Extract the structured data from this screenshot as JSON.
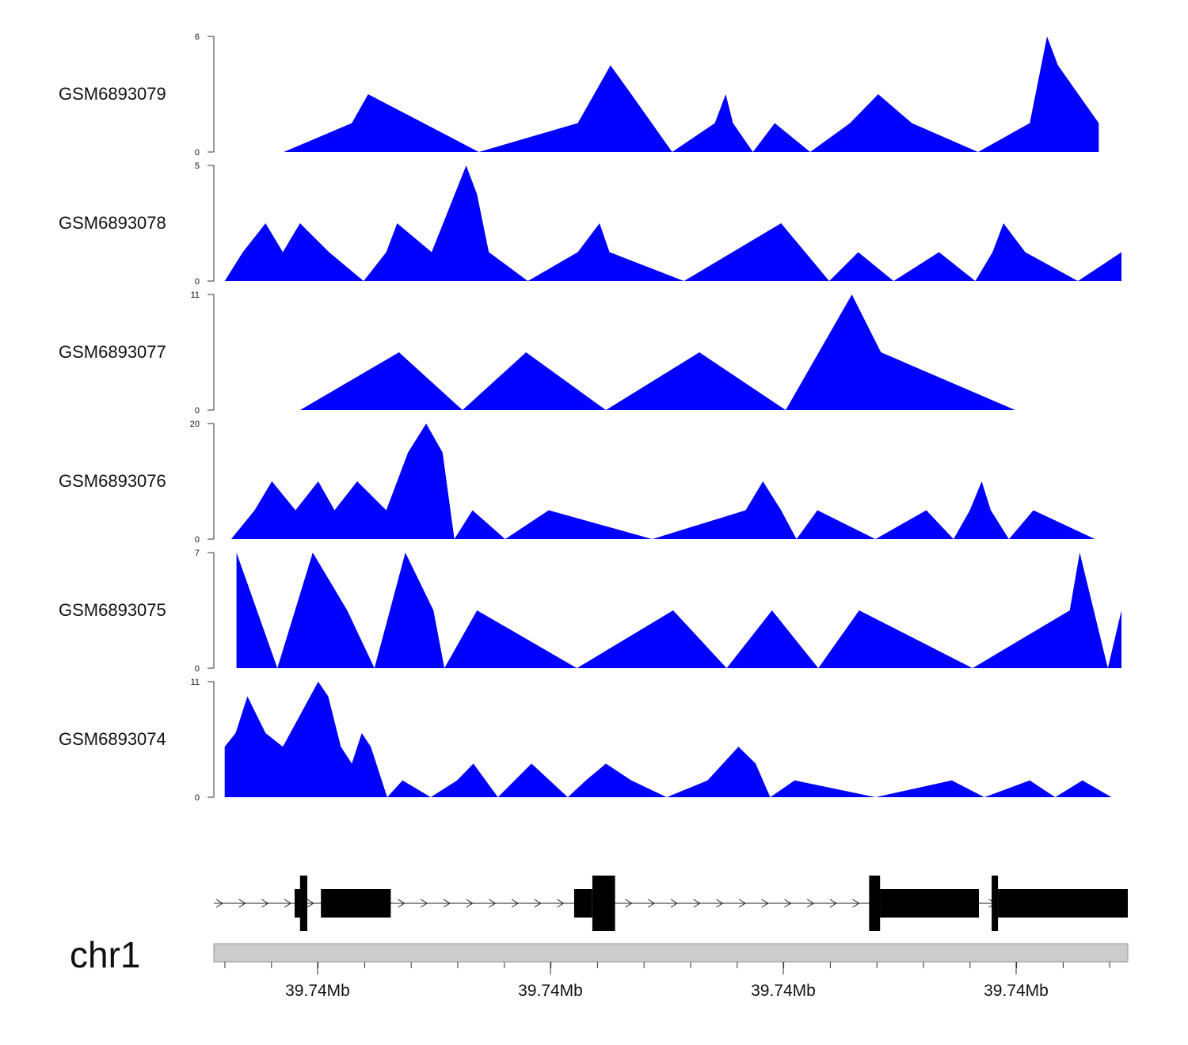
{
  "chart_data": {
    "type": "area",
    "genome_axis": {
      "chromosome": "chr1",
      "tick_labels": [
        "39.74Mb",
        "39.74Mb",
        "39.74Mb",
        "39.74Mb"
      ],
      "x_range": [
        0,
        100
      ]
    },
    "tracks": [
      {
        "name": "GSM6893079",
        "ylim": [
          0,
          6
        ],
        "tick_labels": [
          "0",
          "6"
        ],
        "points": [
          [
            7,
            0
          ],
          [
            14.5,
            1.5
          ],
          [
            16.3,
            3
          ],
          [
            28.5,
            0
          ],
          [
            39.4,
            1.5
          ],
          [
            41.2,
            3
          ],
          [
            43,
            4.5
          ],
          [
            45.3,
            3
          ],
          [
            49.8,
            0
          ],
          [
            54.5,
            1.5
          ],
          [
            55.7,
            3
          ],
          [
            56.5,
            1.5
          ],
          [
            58.7,
            0
          ],
          [
            61.1,
            1.5
          ],
          [
            65,
            0
          ],
          [
            69.4,
            1.5
          ],
          [
            72.5,
            3
          ],
          [
            76.2,
            1.5
          ],
          [
            83.5,
            0
          ],
          [
            89.2,
            1.5
          ],
          [
            91.1,
            6
          ],
          [
            92.3,
            4.5
          ],
          [
            96.8,
            1.5
          ],
          [
            96.8,
            0
          ]
        ]
      },
      {
        "name": "GSM6893078",
        "ylim": [
          0,
          5
        ],
        "tick_labels": [
          "0",
          "5"
        ],
        "points": [
          [
            0.5,
            0
          ],
          [
            2.5,
            1.25
          ],
          [
            5,
            2.5
          ],
          [
            6.9,
            1.25
          ],
          [
            8.8,
            2.5
          ],
          [
            12,
            1.25
          ],
          [
            15.8,
            0
          ],
          [
            18.3,
            1.25
          ],
          [
            19.5,
            2.5
          ],
          [
            23.3,
            1.25
          ],
          [
            27.1,
            5
          ],
          [
            28.3,
            3.75
          ],
          [
            29.6,
            1.25
          ],
          [
            33.9,
            0
          ],
          [
            39.4,
            1.25
          ],
          [
            41.8,
            2.5
          ],
          [
            42.9,
            1.25
          ],
          [
            51.1,
            0
          ],
          [
            61.8,
            2.5
          ],
          [
            67.1,
            0
          ],
          [
            70.3,
            1.25
          ],
          [
            74.2,
            0
          ],
          [
            79.2,
            1.25
          ],
          [
            83.2,
            0
          ],
          [
            85.1,
            1.25
          ],
          [
            86.3,
            2.5
          ],
          [
            88.7,
            1.25
          ],
          [
            94.5,
            0
          ],
          [
            99.3,
            1.25
          ],
          [
            99.3,
            0
          ]
        ]
      },
      {
        "name": "GSM6893077",
        "ylim": [
          0,
          11
        ],
        "tick_labels": [
          "0",
          "11"
        ],
        "points": [
          [
            8.8,
            0
          ],
          [
            19.7,
            5.5
          ],
          [
            26.7,
            0
          ],
          [
            33.7,
            5.5
          ],
          [
            42.5,
            0
          ],
          [
            52.8,
            5.5
          ],
          [
            62.3,
            0
          ],
          [
            69.6,
            11
          ],
          [
            72.8,
            5.5
          ],
          [
            87.6,
            0
          ]
        ]
      },
      {
        "name": "GSM6893076",
        "ylim": [
          0,
          20
        ],
        "tick_labels": [
          "0",
          "20"
        ],
        "points": [
          [
            1.2,
            0
          ],
          [
            3.8,
            5
          ],
          [
            5.7,
            10
          ],
          [
            8.3,
            5
          ],
          [
            10.8,
            10
          ],
          [
            12.6,
            5
          ],
          [
            15.1,
            10
          ],
          [
            18.3,
            5
          ],
          [
            20.7,
            15
          ],
          [
            22.7,
            20
          ],
          [
            24.5,
            15
          ],
          [
            25.8,
            0
          ],
          [
            27.8,
            5
          ],
          [
            31.4,
            0
          ],
          [
            36.2,
            5
          ],
          [
            47.6,
            0
          ],
          [
            57.9,
            5
          ],
          [
            59.8,
            10
          ],
          [
            61.8,
            5
          ],
          [
            63.5,
            0
          ],
          [
            65.8,
            5
          ],
          [
            72.2,
            0
          ],
          [
            77.8,
            5
          ],
          [
            80.8,
            0
          ],
          [
            82.6,
            5
          ],
          [
            83.9,
            10
          ],
          [
            84.9,
            5
          ],
          [
            86.9,
            0
          ],
          [
            89.6,
            5
          ],
          [
            96.4,
            0
          ]
        ]
      },
      {
        "name": "GSM6893075",
        "ylim": [
          0,
          7
        ],
        "tick_labels": [
          "0",
          "7"
        ],
        "points": [
          [
            1.8,
            0
          ],
          [
            1.8,
            7
          ],
          [
            6.3,
            0
          ],
          [
            10.2,
            7
          ],
          [
            14,
            3.5
          ],
          [
            17,
            0
          ],
          [
            20.4,
            7
          ],
          [
            23.5,
            3.5
          ],
          [
            24.7,
            0
          ],
          [
            28.3,
            3.5
          ],
          [
            39.3,
            0
          ],
          [
            49.9,
            3.5
          ],
          [
            55.8,
            0
          ],
          [
            60.8,
            3.5
          ],
          [
            65.9,
            0
          ],
          [
            70.4,
            3.5
          ],
          [
            82.9,
            0
          ],
          [
            93.6,
            3.5
          ],
          [
            94.7,
            7
          ],
          [
            97.8,
            0
          ],
          [
            99.3,
            3.5
          ],
          [
            99.3,
            0
          ]
        ]
      },
      {
        "name": "GSM6893074",
        "ylim": [
          0,
          11
        ],
        "tick_labels": [
          "0",
          "11"
        ],
        "points": [
          [
            0.5,
            0
          ],
          [
            0.5,
            4.8
          ],
          [
            1.7,
            6.1
          ],
          [
            3,
            9.6
          ],
          [
            5,
            6.1
          ],
          [
            6.9,
            4.8
          ],
          [
            10.8,
            11
          ],
          [
            11.9,
            9.6
          ],
          [
            13.3,
            4.8
          ],
          [
            14.5,
            3.2
          ],
          [
            15.6,
            6.1
          ],
          [
            16.6,
            4.8
          ],
          [
            18.4,
            0
          ],
          [
            20.1,
            1.6
          ],
          [
            23.2,
            0
          ],
          [
            26.1,
            1.6
          ],
          [
            27.9,
            3.2
          ],
          [
            30.6,
            0
          ],
          [
            34.3,
            3.2
          ],
          [
            38.3,
            0
          ],
          [
            40.3,
            1.6
          ],
          [
            42.5,
            3.2
          ],
          [
            45.3,
            1.6
          ],
          [
            49.2,
            0
          ],
          [
            53.7,
            1.6
          ],
          [
            57.1,
            4.8
          ],
          [
            59,
            3.2
          ],
          [
            60.6,
            0
          ],
          [
            63.3,
            1.6
          ],
          [
            72.2,
            0
          ],
          [
            80.6,
            1.6
          ],
          [
            84.2,
            0
          ],
          [
            89.2,
            1.6
          ],
          [
            92,
            0
          ],
          [
            95,
            1.6
          ],
          [
            98.2,
            0
          ]
        ]
      }
    ],
    "gene_model": {
      "strand": "+",
      "features": [
        {
          "kind": "utr",
          "start": 8.2,
          "end": 8.8
        },
        {
          "kind": "cds",
          "start": 8.8,
          "end": 9.6
        },
        {
          "kind": "utr",
          "start": 11.1,
          "end": 18.8
        },
        {
          "kind": "utr",
          "start": 39.0,
          "end": 41.0
        },
        {
          "kind": "cds",
          "start": 41.0,
          "end": 43.5
        },
        {
          "kind": "cds",
          "start": 71.5,
          "end": 72.7
        },
        {
          "kind": "utr",
          "start": 72.7,
          "end": 83.6
        },
        {
          "kind": "cds",
          "start": 85.0,
          "end": 85.7
        },
        {
          "kind": "utr",
          "start": 85.7,
          "end": 100
        }
      ]
    },
    "fill_color": "#0000ff",
    "gene_color": "#000000",
    "ideogram_color": "#cccccc"
  }
}
